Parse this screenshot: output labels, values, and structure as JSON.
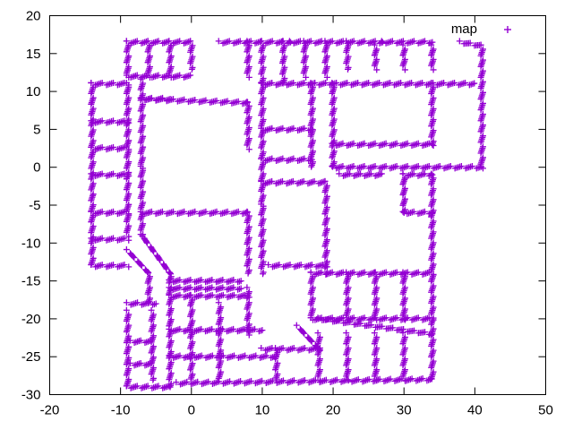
{
  "chart_data": {
    "type": "scatter",
    "title": "",
    "xlabel": "",
    "ylabel": "",
    "xlim": [
      -20,
      50
    ],
    "ylim": [
      -30,
      20
    ],
    "xticks": [
      -20,
      -10,
      0,
      10,
      20,
      30,
      40,
      50
    ],
    "yticks": [
      -30,
      -25,
      -20,
      -15,
      -10,
      -5,
      0,
      5,
      10,
      15,
      20
    ],
    "grid": false,
    "legend": {
      "position": "top-right",
      "label": "map",
      "marker": "+"
    },
    "series": [
      {
        "name": "map",
        "color": "#9400d3",
        "marker": "+",
        "segments": [
          [
            [
              -14,
              11
            ],
            [
              -14,
              -13
            ]
          ],
          [
            [
              -14,
              11
            ],
            [
              -9,
              11
            ]
          ],
          [
            [
              -9,
              11
            ],
            [
              -9,
              -9
            ]
          ],
          [
            [
              -14,
              6
            ],
            [
              -9,
              6
            ]
          ],
          [
            [
              -14,
              2.5
            ],
            [
              -9,
              2.5
            ]
          ],
          [
            [
              -14,
              -1
            ],
            [
              -9,
              -1
            ]
          ],
          [
            [
              -14,
              -6
            ],
            [
              -9,
              -6
            ]
          ],
          [
            [
              -14,
              -9.5
            ],
            [
              -9,
              -9.5
            ]
          ],
          [
            [
              -14,
              -13
            ],
            [
              -9,
              -13
            ]
          ],
          [
            [
              -9,
              16.5
            ],
            [
              0,
              16.5
            ]
          ],
          [
            [
              0,
              16.5
            ],
            [
              0,
              13
            ]
          ],
          [
            [
              -9,
              16.5
            ],
            [
              -9,
              12
            ]
          ],
          [
            [
              -6,
              16.5
            ],
            [
              -6,
              12
            ]
          ],
          [
            [
              -3,
              16.5
            ],
            [
              -3,
              12
            ]
          ],
          [
            [
              -9,
              12
            ],
            [
              0,
              12
            ]
          ],
          [
            [
              -7,
              11.5
            ],
            [
              -7,
              0
            ]
          ],
          [
            [
              -7,
              9
            ],
            [
              -3,
              9
            ]
          ],
          [
            [
              -7,
              0
            ],
            [
              -7,
              -9
            ]
          ],
          [
            [
              -7,
              9
            ],
            [
              8,
              8.5
            ]
          ],
          [
            [
              8,
              8.5
            ],
            [
              8,
              2.5
            ]
          ],
          [
            [
              -7,
              -6
            ],
            [
              8,
              -6
            ]
          ],
          [
            [
              8,
              -6
            ],
            [
              8,
              -14
            ]
          ],
          [
            [
              -7,
              -9
            ],
            [
              -3,
              -14
            ]
          ],
          [
            [
              -9,
              -11
            ],
            [
              -6,
              -14
            ]
          ],
          [
            [
              -6,
              -14
            ],
            [
              -6,
              -18
            ]
          ],
          [
            [
              -3,
              -15
            ],
            [
              7,
              -15
            ]
          ],
          [
            [
              -3,
              -16
            ],
            [
              7,
              -16
            ]
          ],
          [
            [
              -3,
              -14
            ],
            [
              -3,
              -29
            ]
          ],
          [
            [
              -9,
              -18
            ],
            [
              -5,
              -18
            ]
          ],
          [
            [
              -9,
              -19
            ],
            [
              -9,
              -29
            ]
          ],
          [
            [
              -9,
              -29
            ],
            [
              -3,
              -29
            ]
          ],
          [
            [
              -8.5,
              -23
            ],
            [
              -5.5,
              -23
            ]
          ],
          [
            [
              -8.5,
              -26
            ],
            [
              -5.5,
              -26
            ]
          ],
          [
            [
              -5.5,
              -19
            ],
            [
              -5.5,
              -28
            ]
          ],
          [
            [
              -3,
              -17
            ],
            [
              8,
              -17
            ]
          ],
          [
            [
              -3,
              -21.5
            ],
            [
              10,
              -21.5
            ]
          ],
          [
            [
              -3,
              -25
            ],
            [
              12,
              -25
            ]
          ],
          [
            [
              -2,
              -28.5
            ],
            [
              34,
              -28
            ]
          ],
          [
            [
              0,
              -17
            ],
            [
              0,
              -28
            ]
          ],
          [
            [
              4,
              -18
            ],
            [
              4,
              -28
            ]
          ],
          [
            [
              8,
              -16
            ],
            [
              8,
              -22
            ]
          ],
          [
            [
              4,
              16.5
            ],
            [
              14,
              16.5
            ]
          ],
          [
            [
              8,
              16.5
            ],
            [
              8,
              12
            ]
          ],
          [
            [
              10,
              16.5
            ],
            [
              10,
              11
            ]
          ],
          [
            [
              13,
              16.5
            ],
            [
              13,
              11
            ]
          ],
          [
            [
              16,
              16.5
            ],
            [
              16,
              12
            ]
          ],
          [
            [
              19,
              16.5
            ],
            [
              19,
              12
            ]
          ],
          [
            [
              22,
              16.5
            ],
            [
              22,
              13
            ]
          ],
          [
            [
              14,
              16.5
            ],
            [
              27,
              16.5
            ]
          ],
          [
            [
              27,
              16.5
            ],
            [
              34,
              16.5
            ]
          ],
          [
            [
              26,
              16
            ],
            [
              26,
              13
            ]
          ],
          [
            [
              30,
              16
            ],
            [
              30,
              13
            ]
          ],
          [
            [
              34,
              16
            ],
            [
              34,
              13
            ]
          ],
          [
            [
              38,
              16.5
            ],
            [
              41,
              16
            ]
          ],
          [
            [
              10,
              11
            ],
            [
              40,
              11
            ]
          ],
          [
            [
              10,
              11
            ],
            [
              10,
              -5
            ]
          ],
          [
            [
              10,
              5
            ],
            [
              17,
              5
            ]
          ],
          [
            [
              10,
              1
            ],
            [
              17,
              1
            ]
          ],
          [
            [
              17,
              11
            ],
            [
              17,
              0
            ]
          ],
          [
            [
              20,
              11
            ],
            [
              20,
              0
            ]
          ],
          [
            [
              20,
              0
            ],
            [
              41,
              0
            ]
          ],
          [
            [
              41,
              16
            ],
            [
              41,
              0
            ]
          ],
          [
            [
              20,
              3
            ],
            [
              34,
              3
            ]
          ],
          [
            [
              34,
              11
            ],
            [
              34,
              3
            ]
          ],
          [
            [
              10,
              -2
            ],
            [
              19,
              -2
            ]
          ],
          [
            [
              19,
              -2
            ],
            [
              19,
              -14
            ]
          ],
          [
            [
              10,
              -5
            ],
            [
              10,
              -14
            ]
          ],
          [
            [
              11,
              -13
            ],
            [
              19,
              -13
            ]
          ],
          [
            [
              21,
              -1
            ],
            [
              27,
              -1
            ]
          ],
          [
            [
              30,
              -1
            ],
            [
              34,
              -1
            ]
          ],
          [
            [
              34,
              -1
            ],
            [
              34,
              -28
            ]
          ],
          [
            [
              30,
              -1
            ],
            [
              30,
              -6
            ]
          ],
          [
            [
              30,
              -6
            ],
            [
              34,
              -6
            ]
          ],
          [
            [
              17,
              -14
            ],
            [
              34,
              -14
            ]
          ],
          [
            [
              17,
              -14
            ],
            [
              17,
              -20
            ]
          ],
          [
            [
              17,
              -20
            ],
            [
              34,
              -20
            ]
          ],
          [
            [
              22,
              -14
            ],
            [
              22,
              -20
            ]
          ],
          [
            [
              26,
              -14
            ],
            [
              26,
              -20
            ]
          ],
          [
            [
              30,
              -14
            ],
            [
              30,
              -20
            ]
          ],
          [
            [
              18,
              -20
            ],
            [
              34,
              -22
            ]
          ],
          [
            [
              18,
              -22
            ],
            [
              18,
              -28
            ]
          ],
          [
            [
              22,
              -22
            ],
            [
              22,
              -28
            ]
          ],
          [
            [
              26,
              -22
            ],
            [
              26,
              -28
            ]
          ],
          [
            [
              30,
              -22
            ],
            [
              30,
              -28
            ]
          ],
          [
            [
              10,
              -24
            ],
            [
              18,
              -24
            ]
          ],
          [
            [
              12,
              -24
            ],
            [
              12,
              -28
            ]
          ],
          [
            [
              15,
              -21
            ],
            [
              18,
              -24
            ]
          ]
        ]
      }
    ]
  }
}
